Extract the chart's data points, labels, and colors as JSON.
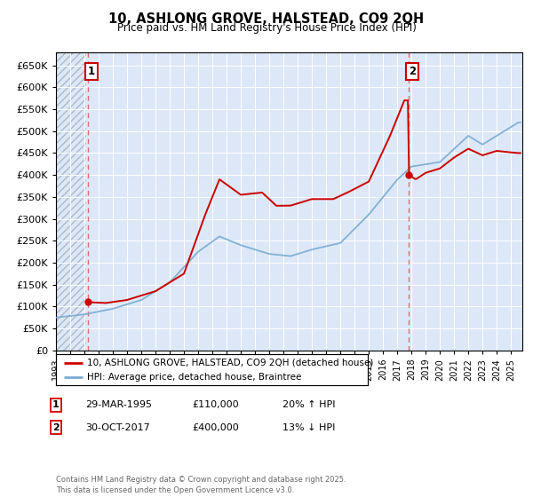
{
  "title": "10, ASHLONG GROVE, HALSTEAD, CO9 2QH",
  "subtitle": "Price paid vs. HM Land Registry's House Price Index (HPI)",
  "ylim": [
    0,
    680000
  ],
  "yticks": [
    0,
    50000,
    100000,
    150000,
    200000,
    250000,
    300000,
    350000,
    400000,
    450000,
    500000,
    550000,
    600000,
    650000
  ],
  "background_color": "#ffffff",
  "plot_bg_color": "#dce8f8",
  "grid_color": "#ffffff",
  "sale1_x": 1995.24,
  "sale1_price": 110000,
  "sale2_x": 2017.83,
  "sale2_price": 400000,
  "legend_line1": "10, ASHLONG GROVE, HALSTEAD, CO9 2QH (detached house)",
  "legend_line2": "HPI: Average price, detached house, Braintree",
  "annotation1": "29-MAR-1995",
  "annotation1_price": "£110,000",
  "annotation1_hpi": "20% ↑ HPI",
  "annotation2": "30-OCT-2017",
  "annotation2_price": "£400,000",
  "annotation2_hpi": "13% ↓ HPI",
  "footer": "Contains HM Land Registry data © Crown copyright and database right 2025.\nThis data is licensed under the Open Government Licence v3.0.",
  "red_line_color": "#cc0000",
  "blue_line_color": "#7aaad0",
  "dashed_line_color": "#e06060",
  "xmin": 1993.0,
  "xmax": 2025.8
}
